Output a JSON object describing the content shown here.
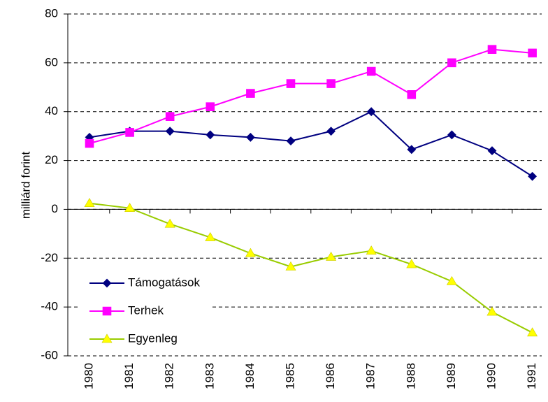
{
  "chart_data": {
    "type": "line",
    "y_label": "milliárd forint",
    "categories": [
      "1980",
      "1981",
      "1982",
      "1983",
      "1984",
      "1985",
      "1986",
      "1987",
      "1988",
      "1989",
      "1990",
      "1991"
    ],
    "series": [
      {
        "name": "Támogatások",
        "color": "#000080",
        "marker_color": "#000080",
        "marker": "diamond",
        "values": [
          29.5,
          32,
          32,
          30.5,
          29.5,
          28,
          32,
          40,
          24.5,
          30.5,
          24,
          13.5
        ]
      },
      {
        "name": "Terhek",
        "color": "#ff00ff",
        "marker_color": "#ff00ff",
        "marker": "square",
        "values": [
          27,
          31.5,
          38,
          42,
          47.5,
          51.5,
          51.5,
          56.5,
          47,
          60,
          65.5,
          64
        ]
      },
      {
        "name": "Egyenleg",
        "color": "#99cc00",
        "marker_color": "#ffff00",
        "marker": "triangle",
        "values": [
          2.5,
          0.5,
          -6,
          -11.5,
          -18,
          -23.5,
          -19.5,
          -17,
          -22.5,
          -29.5,
          -42,
          -50.5
        ]
      }
    ],
    "ylim": [
      -60,
      80
    ],
    "yticks": [
      -60,
      -40,
      -20,
      0,
      20,
      40,
      60,
      80
    ],
    "grid": true,
    "legend": "lower left"
  }
}
